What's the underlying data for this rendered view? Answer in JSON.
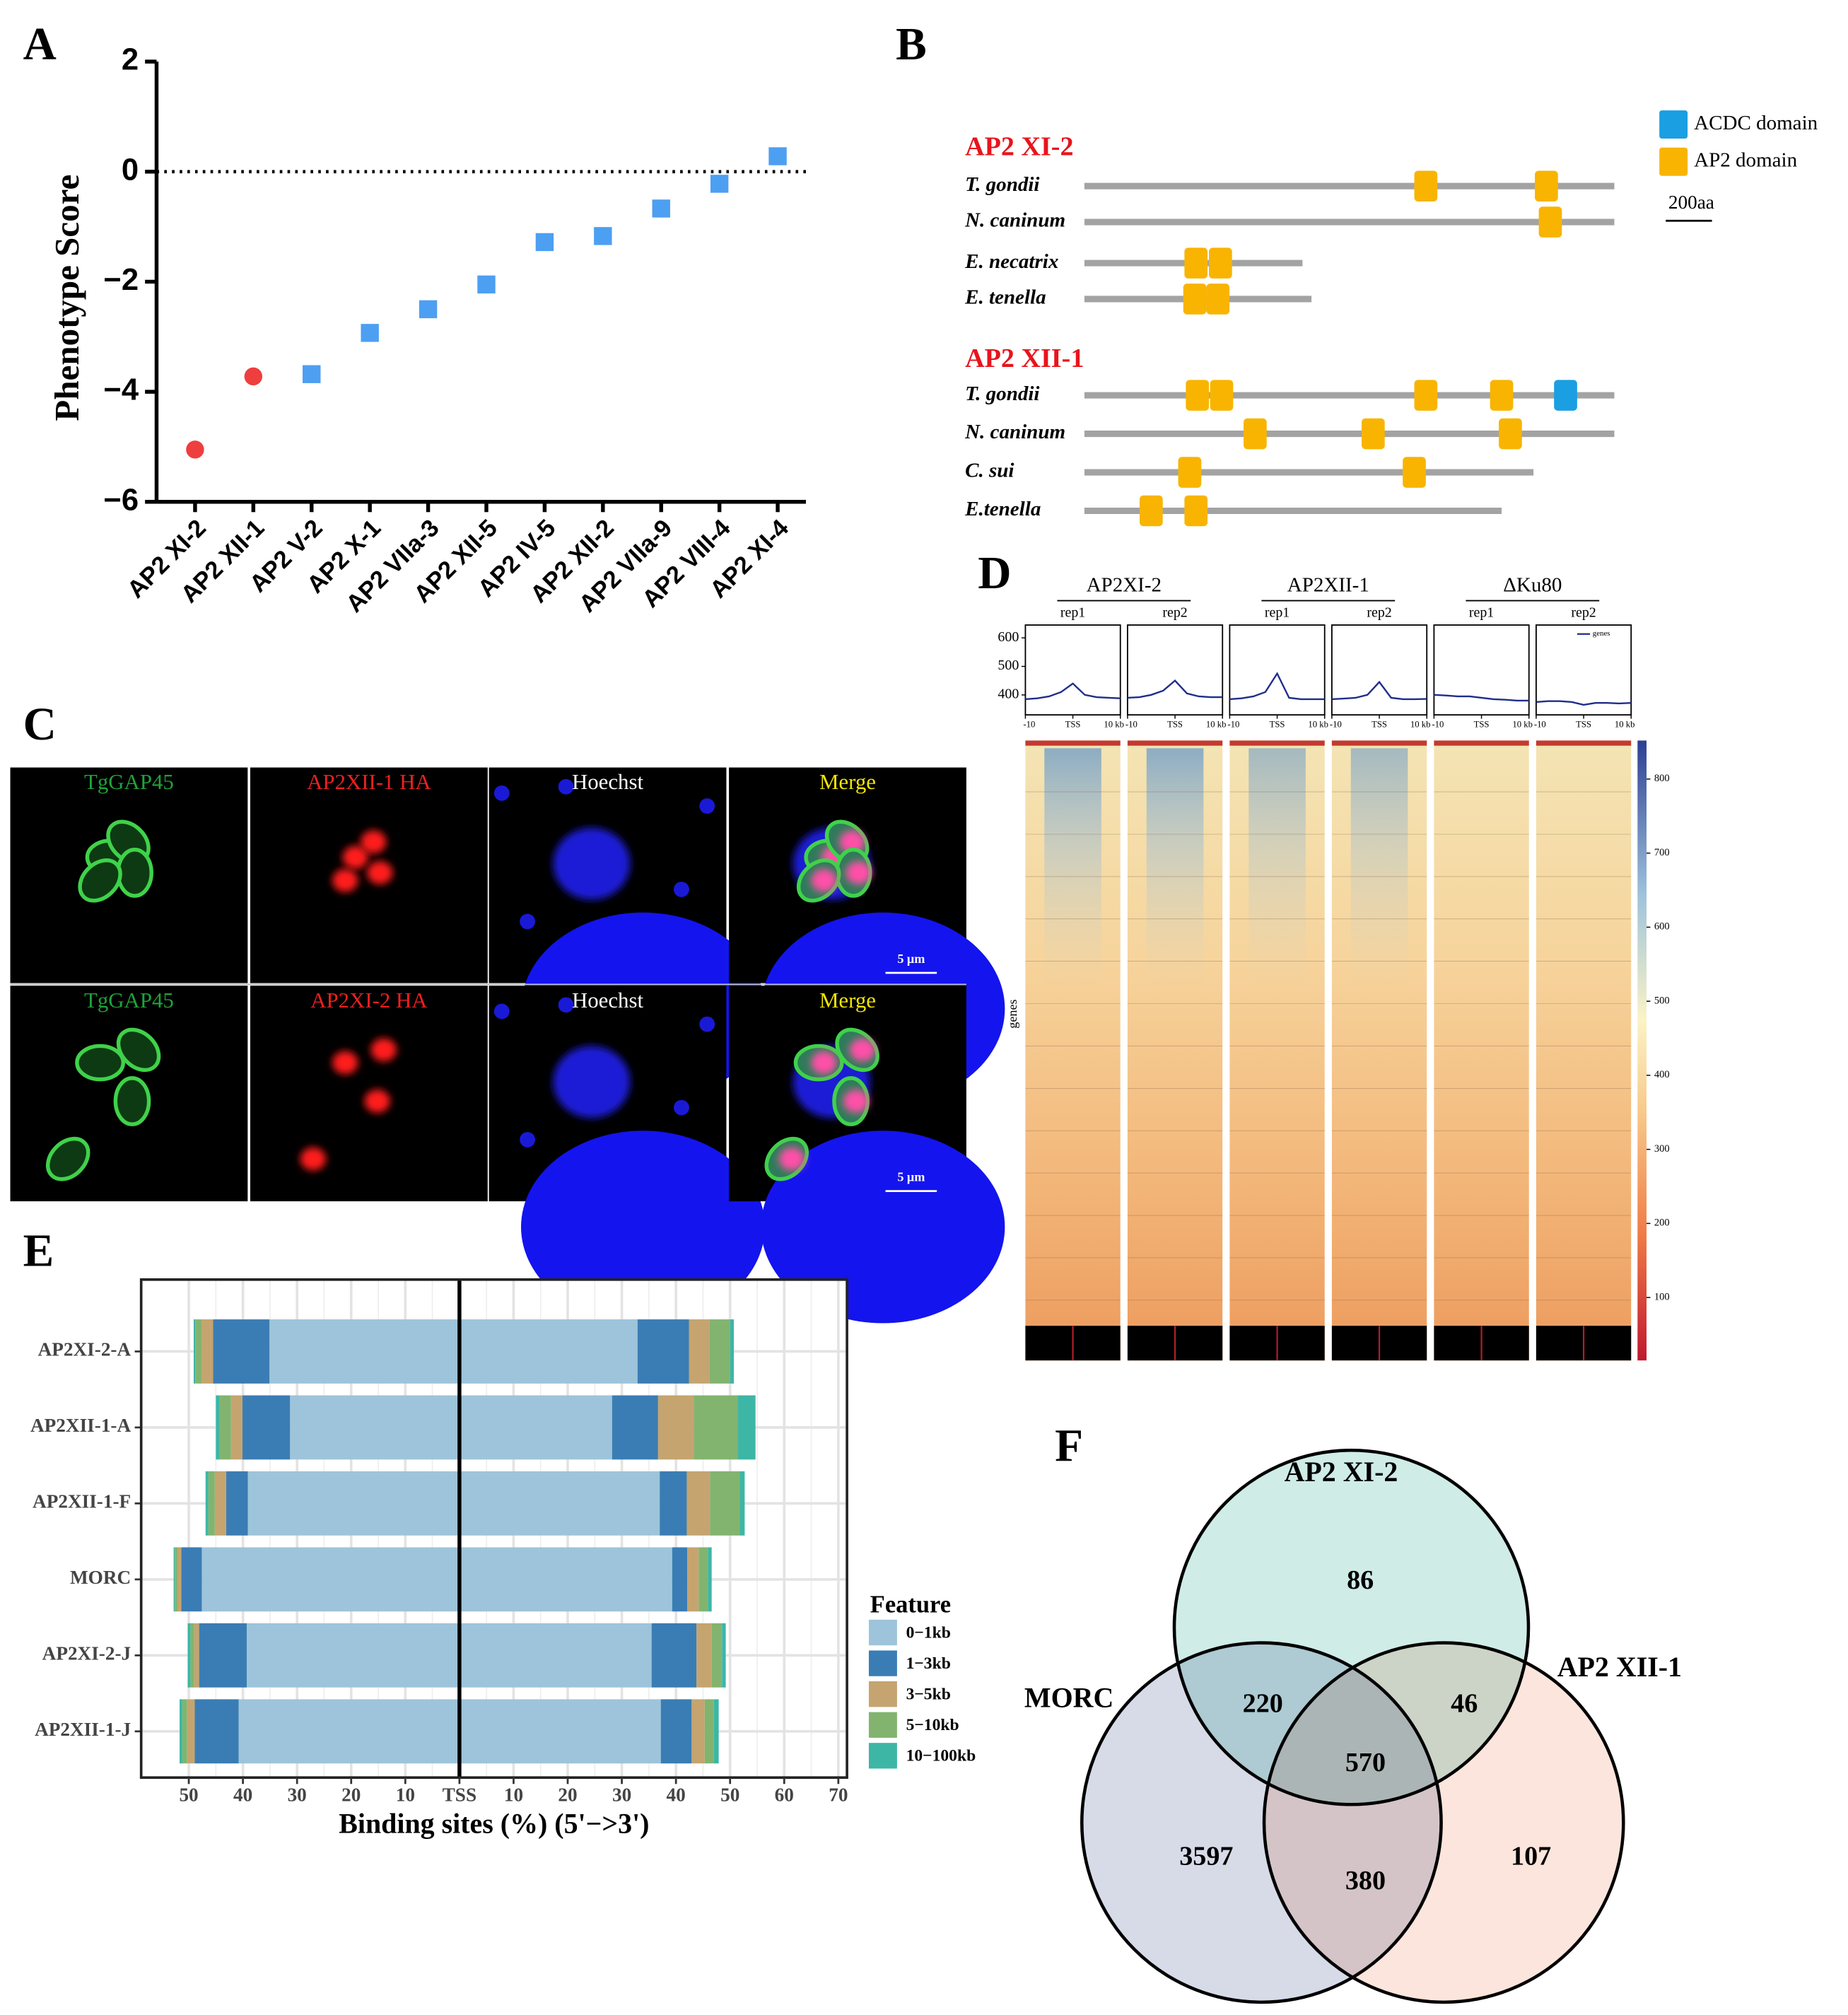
{
  "panel_labels": [
    "A",
    "B",
    "C",
    "D",
    "E",
    "F"
  ],
  "chart_data": [
    {
      "type": "scatter",
      "ylabel": "Phenotype Score",
      "categories": [
        "AP2 XI-2",
        "AP2 XII-1",
        "AP2 V-2",
        "AP2 X-1",
        "AP2 VIIa-3",
        "AP2 XII-5",
        "AP2 IV-5",
        "AP2 XII-2",
        "AP2 VIIa-9",
        "AP2 VIII-4",
        "AP2 XI-4"
      ],
      "values": [
        -5.05,
        -3.72,
        -3.68,
        -2.93,
        -2.5,
        -2.05,
        -1.28,
        -1.17,
        -0.67,
        -0.22,
        0.28
      ],
      "colors": [
        "#ef3e3e",
        "#ef3e3e",
        "#4d9ff2",
        "#4d9ff2",
        "#4d9ff2",
        "#4d9ff2",
        "#4d9ff2",
        "#4d9ff2",
        "#4d9ff2",
        "#4d9ff2",
        "#4d9ff2"
      ],
      "markers": [
        "circle",
        "circle",
        "square",
        "square",
        "square",
        "square",
        "square",
        "square",
        "square",
        "square",
        "square"
      ],
      "ylim": [
        -6,
        2
      ],
      "yticks": [
        {
          "value": -6,
          "label": "−6"
        },
        {
          "value": -4,
          "label": "−4"
        },
        {
          "value": -2,
          "label": "−2"
        },
        0,
        2
      ],
      "reference_line": 0
    },
    {
      "type": "heatmap",
      "ylabel": "genes",
      "groups": [
        {
          "name": "AP2XI-2",
          "samples": [
            "rep1",
            "rep2"
          ]
        },
        {
          "name": "AP2XII-1",
          "samples": [
            "rep1",
            "rep2"
          ]
        },
        {
          "name": "ΔKu80",
          "samples": [
            "rep1",
            "rep2"
          ]
        }
      ],
      "profile": {
        "legend": "genes",
        "color": "#1f2d8a",
        "xlim": [
          -10,
          10
        ],
        "xticks": [
          -10,
          {
            "value": 0,
            "label": "TSS"
          },
          {
            "value": 10,
            "label": "10 kb"
          }
        ],
        "ylim": [
          330,
          645
        ],
        "yticks": [
          400,
          500,
          600
        ],
        "x": [
          -10,
          -7.5,
          -5,
          -2.5,
          0,
          2.5,
          5,
          7.5,
          10
        ],
        "series": [
          {
            "values": [
              385,
              388,
              395,
              410,
              440,
              400,
              392,
              390,
              388
            ]
          },
          {
            "values": [
              390,
              392,
              400,
              415,
              450,
              405,
              395,
              392,
              392
            ]
          },
          {
            "values": [
              385,
              388,
              395,
              410,
              475,
              390,
              385,
              385,
              385
            ]
          },
          {
            "values": [
              385,
              387,
              390,
              400,
              445,
              390,
              385,
              385,
              386
            ]
          },
          {
            "values": [
              400,
              398,
              395,
              395,
              390,
              385,
              383,
              380,
              380
            ]
          },
          {
            "values": [
              375,
              378,
              378,
              375,
              365,
              372,
              372,
              370,
              372
            ]
          }
        ]
      },
      "colorbar": {
        "clim": [
          15,
          852
        ],
        "ticks": [
          100,
          200,
          300,
          400,
          500,
          600,
          700,
          800
        ]
      }
    },
    {
      "type": "bar_diverging",
      "xlabel": "Binding sites (%) (5'−>3')",
      "legend_title": "Feature",
      "categories": [
        "AP2XI-2-A",
        "AP2XII-1-A",
        "AP2XII-1-F",
        "MORC",
        "AP2XI-2-J",
        "AP2XII-1-J"
      ],
      "xlim": [
        -58.8,
        71.6
      ],
      "xticks": [
        {
          "value": -50,
          "label": "50"
        },
        {
          "value": -40,
          "label": "40"
        },
        {
          "value": -30,
          "label": "30"
        },
        {
          "value": -20,
          "label": "20"
        },
        {
          "value": -10,
          "label": "10"
        },
        {
          "value": 0,
          "label": "TSS"
        },
        10,
        20,
        30,
        40,
        50,
        60,
        70
      ],
      "grid": true,
      "series": [
        {
          "name": "0−1kb",
          "color": "#9dc4da",
          "upstream": [
            35.1,
            31.3,
            39.1,
            47.6,
            39.3,
            40.8
          ],
          "downstream": [
            32.9,
            28.2,
            37.0,
            39.3,
            35.5,
            37.2
          ]
        },
        {
          "name": "1−3kb",
          "color": "#3a7db4",
          "upstream": [
            10.4,
            8.8,
            4.0,
            3.8,
            8.8,
            8.1
          ],
          "downstream": [
            9.5,
            8.5,
            5.0,
            2.8,
            8.3,
            5.7
          ]
        },
        {
          "name": "3−5kb",
          "color": "#c5a46f",
          "upstream": [
            2.1,
            2.1,
            2.1,
            0.7,
            0.9,
            1.4
          ],
          "downstream": [
            3.8,
            6.6,
            4.3,
            2.1,
            2.8,
            2.4
          ]
        },
        {
          "name": "5−10kb",
          "color": "#82b46f",
          "upstream": [
            1.2,
            2.1,
            1.2,
            0.5,
            0.7,
            0.9
          ],
          "downstream": [
            3.8,
            8.1,
            5.5,
            1.7,
            1.9,
            1.7
          ]
        },
        {
          "name": "10−100kb",
          "color": "#3db6a6",
          "upstream": [
            0.3,
            0.7,
            0.5,
            0.2,
            0.5,
            0.5
          ],
          "downstream": [
            0.7,
            3.3,
            0.9,
            0.7,
            0.7,
            0.9
          ]
        }
      ]
    },
    {
      "type": "venn",
      "sets": [
        {
          "name": "AP2 XI-2",
          "color": "#bfe5df"
        },
        {
          "name": "MORC",
          "color": "#c9cfe0"
        },
        {
          "name": "AP2 XII-1",
          "color": "#fbdcd0"
        }
      ],
      "values": [
        86,
        220,
        46,
        570,
        3597,
        380,
        107
      ]
    }
  ],
  "domain_diagram": {
    "legend": [
      {
        "label": "ACDC domain",
        "color": "#1a9fe2"
      },
      {
        "label": "AP2 domain",
        "color": "#f8b400"
      }
    ],
    "scale_bar": {
      "value": 200,
      "label": "200aa"
    },
    "groups": [
      {
        "title": "AP2 XI-2",
        "species": [
          {
            "name": "T. gondii",
            "length": 2294,
            "ap2": [
              1478,
              2000
            ],
            "acdc": []
          },
          {
            "name": "N. caninum",
            "length": 2294,
            "ap2": [
              2017
            ],
            "acdc": []
          },
          {
            "name": "E. necatrix",
            "length": 944,
            "ap2": [
              483,
              589
            ],
            "acdc": []
          },
          {
            "name": "E. tenella",
            "length": 983,
            "ap2": [
              478,
              578
            ],
            "acdc": []
          }
        ]
      },
      {
        "title": "AP2 XII-1",
        "species": [
          {
            "name": "T. gondii",
            "length": 2294,
            "ap2": [
              489,
              594,
              1478,
              1806
            ],
            "acdc": [
              2083
            ]
          },
          {
            "name": "N. caninum",
            "length": 2294,
            "ap2": [
              739,
              1250,
              1844
            ],
            "acdc": []
          },
          {
            "name": "C. sui",
            "length": 1944,
            "ap2": [
              456,
              1428
            ],
            "acdc": []
          },
          {
            "name": "E.tenella",
            "length": 1806,
            "ap2": [
              289,
              483
            ],
            "acdc": []
          }
        ]
      }
    ]
  },
  "microscopy": {
    "scale": "5 μm",
    "rows": [
      {
        "channels": [
          "TgGAP45",
          "AP2XII-1 HA",
          "Hoechst",
          "Merge"
        ]
      },
      {
        "channels": [
          "TgGAP45",
          "AP2XI-2 HA",
          "Hoechst",
          "Merge"
        ]
      }
    ]
  }
}
